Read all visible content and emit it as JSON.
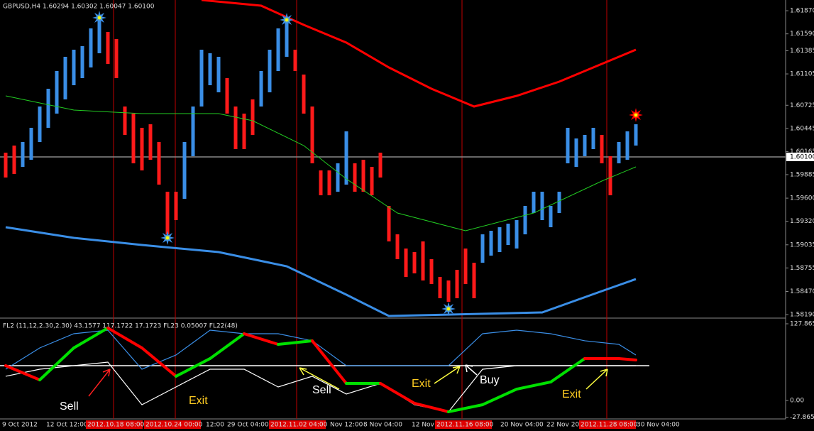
{
  "chart_data": [
    {
      "type": "ohlc",
      "title": "GBPUSD,H4  1.60294 1.60302 1.60047 1.60100",
      "ylim": [
        1.58156,
        1.62
      ],
      "yticks": [
        {
          "value": 1.6187,
          "label": "1.61870"
        },
        {
          "value": 1.6159,
          "label": "1.61590"
        },
        1.61385,
        1.61105,
        1.60725,
        1.60445,
        1.60165,
        1.59885,
        {
          "value": 1.596,
          "label": "1.59600"
        },
        {
          "value": 1.5932,
          "label": "1.59320"
        },
        1.59035,
        1.58755,
        {
          "value": 1.5847,
          "label": "1.58470"
        },
        {
          "value": 1.5819,
          "label": "1.58190"
        }
      ],
      "current_price": {
        "value": 1.601,
        "label": "1.60100"
      },
      "up_color": "#3a8ee6",
      "down_color": "#ff1a1a",
      "highs": [
        1.60151,
        1.60237,
        1.6028,
        1.60452,
        1.6071,
        1.60925,
        1.6114,
        1.61312,
        1.61398,
        1.61441,
        1.61656,
        1.61785,
        1.61613,
        1.61527,
        1.6071,
        1.60624,
        1.60452,
        1.60495,
        1.6028,
        1.59678,
        1.59678,
        1.6028,
        1.6071,
        1.61398,
        1.61355,
        1.61312,
        1.61054,
        1.6071,
        1.60624,
        1.60796,
        1.6114,
        1.61398,
        1.61656,
        1.61785,
        1.61398,
        1.61097,
        1.6071,
        1.59936,
        1.59936,
        1.60022,
        1.60409,
        1.60022,
        1.60065,
        1.59979,
        1.60151,
        1.59506,
        1.59162,
        1.5899,
        1.58947,
        1.59076,
        1.58861,
        1.58646,
        1.58603,
        1.58732,
        1.5899,
        1.58818,
        1.59162,
        1.59205,
        1.59248,
        1.59291,
        1.59334,
        1.59506,
        1.59678,
        1.59678,
        1.59506,
        1.59678,
        1.60452,
        1.60323,
        1.60366,
        1.60452,
        1.60366,
        1.60108,
        1.6028,
        1.60409,
        1.60495
      ],
      "lows": [
        1.5985,
        1.59893,
        1.59979,
        1.60065,
        1.6028,
        1.60452,
        1.60624,
        1.60796,
        1.60968,
        1.61054,
        1.61183,
        1.61355,
        1.61226,
        1.61054,
        1.60366,
        1.60022,
        1.59936,
        1.60065,
        1.59764,
        1.59162,
        1.59334,
        1.59592,
        1.60108,
        1.6071,
        1.60968,
        1.60882,
        1.60624,
        1.60194,
        1.60194,
        1.60366,
        1.6071,
        1.60882,
        1.6114,
        1.61312,
        1.6114,
        1.60624,
        1.60022,
        1.59635,
        1.59635,
        1.59678,
        1.59764,
        1.59678,
        1.59678,
        1.59635,
        1.5985,
        1.59076,
        1.58861,
        1.58646,
        1.58689,
        1.58603,
        1.5856,
        1.58388,
        1.58345,
        1.58388,
        1.5856,
        1.58388,
        1.58818,
        1.58904,
        1.58947,
        1.59033,
        1.5899,
        1.59162,
        1.5942,
        1.59334,
        1.59248,
        1.5942,
        1.60022,
        1.59979,
        1.60108,
        1.60194,
        1.60022,
        1.59635,
        1.60022,
        1.60065,
        1.60237
      ],
      "rising": [
        0,
        0,
        1,
        1,
        1,
        1,
        1,
        1,
        1,
        1,
        1,
        1,
        0,
        0,
        0,
        0,
        0,
        0,
        0,
        0,
        0,
        1,
        1,
        1,
        1,
        1,
        0,
        0,
        0,
        0,
        1,
        1,
        1,
        1,
        0,
        0,
        0,
        0,
        0,
        1,
        1,
        0,
        0,
        0,
        0,
        0,
        0,
        0,
        0,
        0,
        0,
        0,
        0,
        0,
        0,
        0,
        1,
        1,
        1,
        1,
        1,
        1,
        1,
        1,
        1,
        1,
        1,
        1,
        1,
        1,
        0,
        0,
        1,
        1,
        1
      ],
      "lines": [
        {
          "color": "#ff0000",
          "width": 3,
          "x": [
            23,
            30,
            35,
            40,
            45,
            50,
            55,
            60,
            65,
            70,
            74
          ],
          "values": [
            1.62,
            1.61931,
            1.61699,
            1.61484,
            1.61183,
            1.60925,
            1.6071,
            1.60839,
            1.61011,
            1.61226,
            1.61398
          ]
        },
        {
          "color": "#22cc22",
          "width": 1,
          "x": [
            0,
            8,
            16,
            25,
            29,
            35,
            40,
            46,
            54,
            62,
            70,
            74
          ],
          "values": [
            1.60839,
            1.60667,
            1.60624,
            1.60624,
            1.60538,
            1.60237,
            1.59833,
            1.5942,
            1.59205,
            1.5942,
            1.59807,
            1.59979
          ]
        },
        {
          "color": "#3a8ee6",
          "width": 3,
          "x": [
            0,
            8,
            16,
            25,
            33,
            40,
            45,
            63,
            70,
            74
          ],
          "values": [
            1.59248,
            1.59119,
            1.59033,
            1.58947,
            1.58775,
            1.58431,
            1.58173,
            1.58216,
            1.58474,
            1.5862
          ]
        }
      ],
      "signals": {
        "color": "#ffff00",
        "x": [
          11,
          19,
          33,
          52,
          74
        ],
        "values": [
          1.61785,
          1.59119,
          1.61759,
          1.58259,
          1.60607
        ]
      }
    },
    {
      "type": "oscillator",
      "title": "FL2 (11,12,2.30,2.30) 43.1577 117.1722 17.1723 FL23 0.05007 FL22(48)",
      "ylim": [
        -30.8,
        134.96
      ],
      "yticks": [
        127.8654,
        {
          "value": 0,
          "label": "0.00"
        },
        -27.8654
      ],
      "level": 58.0,
      "x": [
        0,
        4,
        8,
        12,
        16,
        20,
        24,
        28,
        32,
        36,
        40,
        44,
        48,
        52,
        56,
        60,
        64,
        68,
        72,
        74
      ],
      "blue": [
        52.1,
        87.6,
        111.3,
        117.2,
        52.1,
        75.8,
        117.2,
        111.3,
        111.3,
        99.5,
        58.0,
        58.0,
        58.0,
        58.0,
        111.3,
        117.2,
        111.3,
        99.5,
        93.5,
        75.8
      ],
      "white": [
        40.3,
        52.1,
        58.0,
        63.9,
        -7.1,
        22.5,
        52.1,
        52.1,
        22.5,
        40.3,
        10.7,
        28.4,
        -7.1,
        -18.9,
        52.1,
        58.0,
        58.0,
        58.0,
        58.0,
        58.0
      ],
      "thick": [
        58.0,
        34.3,
        87.6,
        120.8,
        87.6,
        40.3,
        69.9,
        111.3,
        93.5,
        99.5,
        28.4,
        28.4,
        -4.7,
        -18.9,
        -7.1,
        18.9,
        30.8,
        69.9,
        69.9,
        67.5
      ],
      "segment_colors": [
        "#ff0000",
        "#00e000",
        "#00e000",
        "#ff0000",
        "#ff0000",
        "#00e000",
        "#00e000",
        "#ff0000",
        "#00e000",
        "#ff0000",
        "#00e000",
        "#ff0000",
        "#ff0000",
        "#00e000",
        "#00e000",
        "#00e000",
        "#00e000",
        "#ff0000",
        "#ff0000"
      ],
      "annotations": [
        {
          "text": "Sell",
          "color": "#ffffff"
        },
        {
          "text": "Exit",
          "color": "#ffcc22"
        },
        {
          "text": "Sell",
          "color": "#ffffff"
        },
        {
          "text": "Exit",
          "color": "#ffcc22"
        },
        {
          "text": "Buy",
          "color": "#ffffff"
        },
        {
          "text": "Exit",
          "color": "#ffcc22"
        }
      ]
    }
  ],
  "time_axis": {
    "labels": [
      "9 Oct 2012",
      "12 Oct 12:00",
      "2012.10.18 08:00",
      "2012.10.24 00:00",
      "12:00",
      "29 Oct 04:00",
      "2012.11.02 04:00",
      "Nov 12:00",
      "8 Nov 04:00",
      "12 Nov",
      "2012.11.16 08:00",
      "20 Nov 04:00",
      "22 Nov 20",
      "2012.11.28 08:00",
      "30 Nov 04:00"
    ],
    "highlight": [
      false,
      false,
      true,
      true,
      false,
      false,
      true,
      false,
      false,
      false,
      true,
      false,
      false,
      true,
      false
    ]
  }
}
